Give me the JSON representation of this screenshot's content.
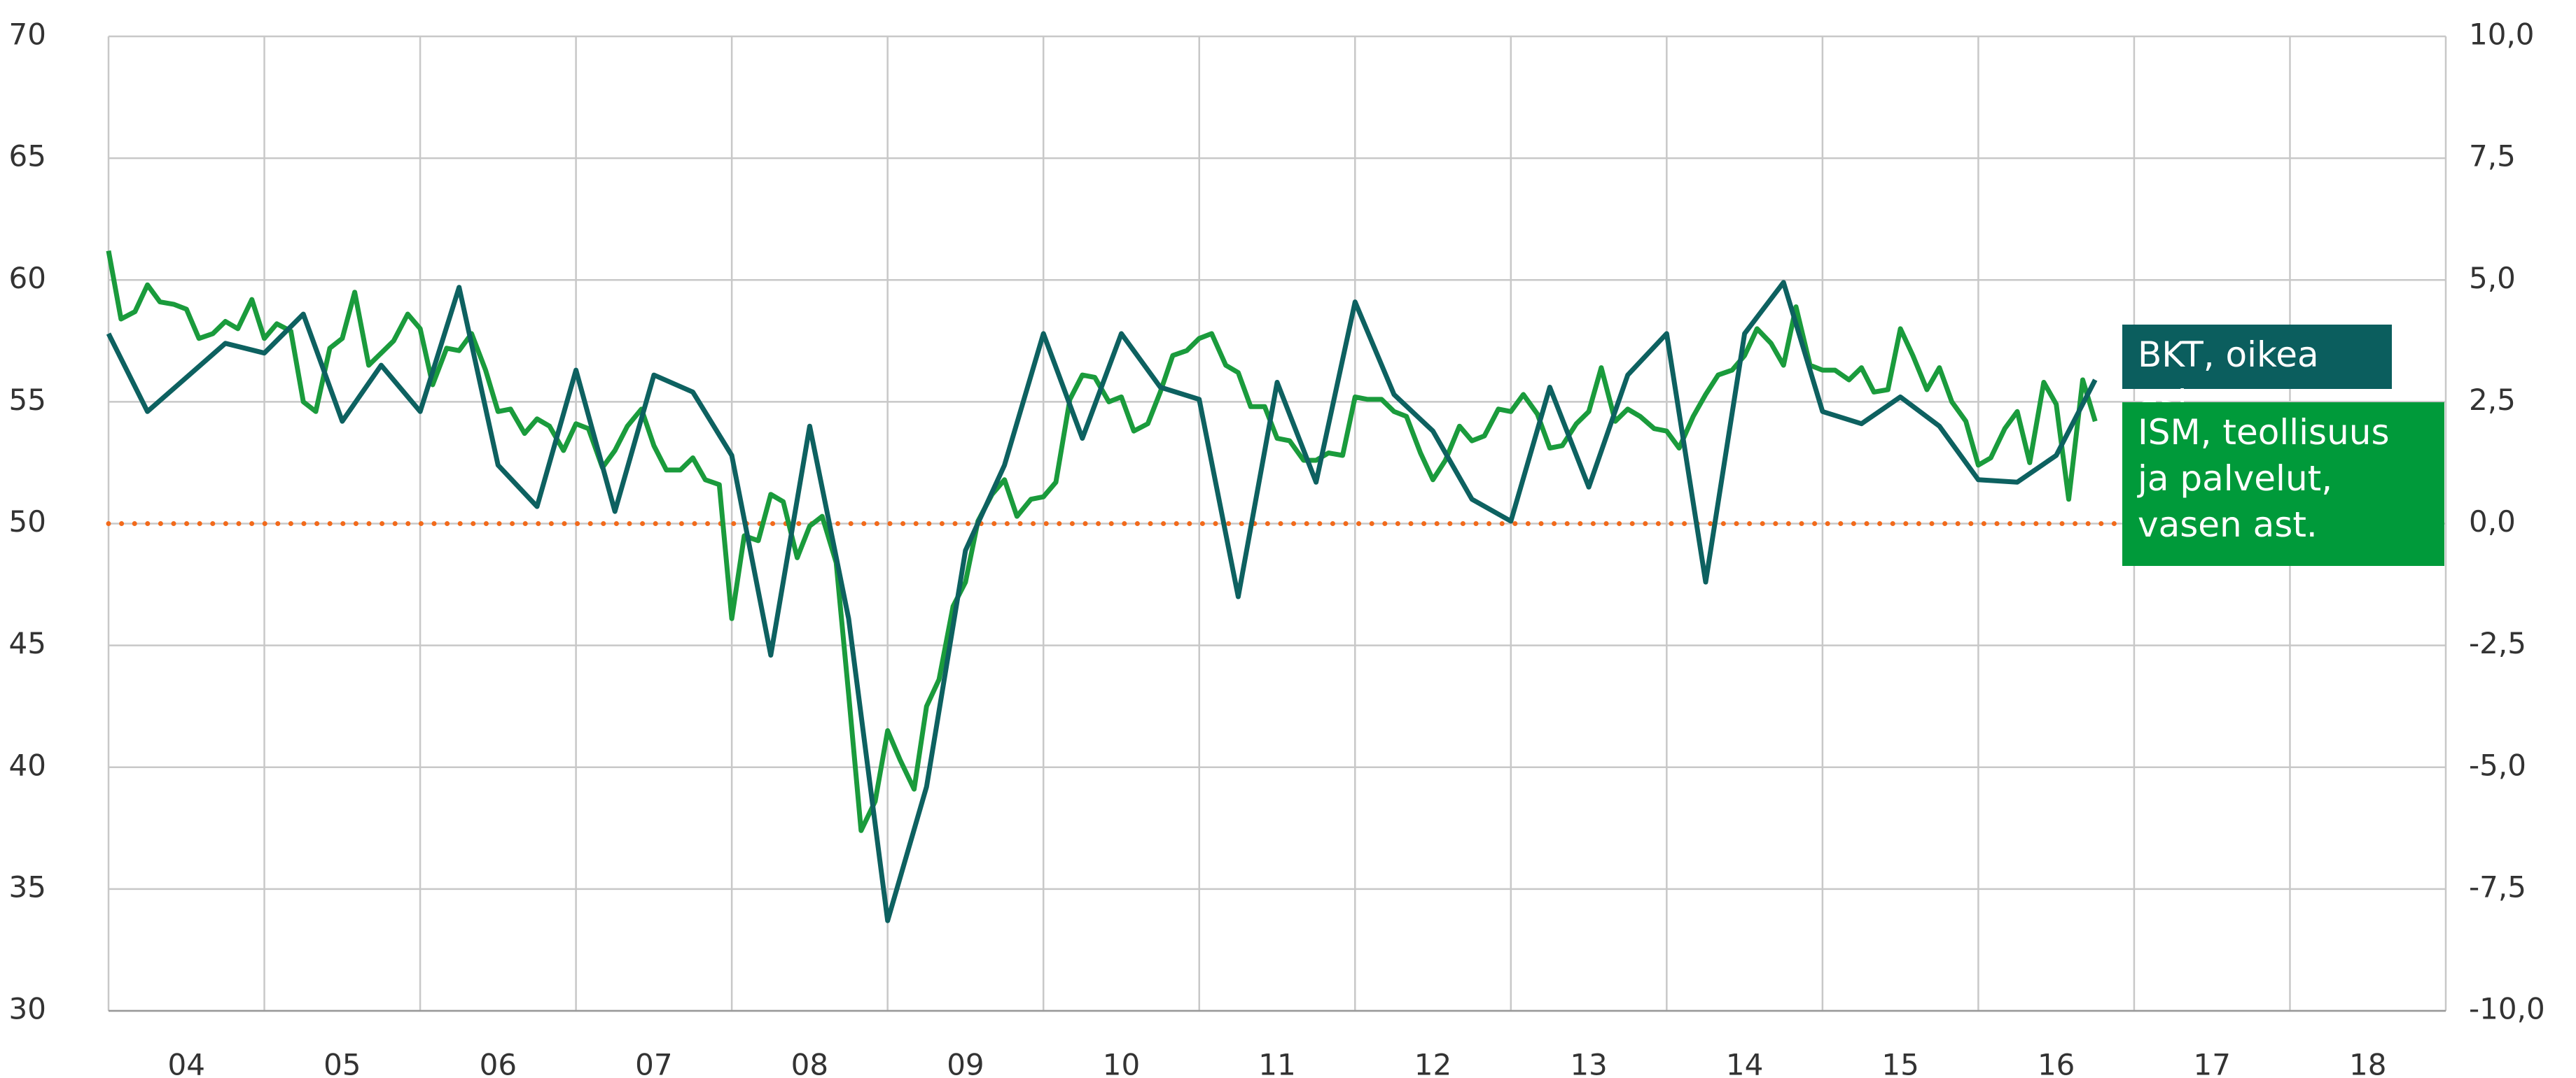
{
  "chart_data": {
    "type": "line",
    "xlim": [
      2004,
      2019
    ],
    "xticks": [
      {
        "value": 2004.5,
        "label": "04"
      },
      {
        "value": 2005.5,
        "label": "05"
      },
      {
        "value": 2006.5,
        "label": "06"
      },
      {
        "value": 2007.5,
        "label": "07"
      },
      {
        "value": 2008.5,
        "label": "08"
      },
      {
        "value": 2009.5,
        "label": "09"
      },
      {
        "value": 2010.5,
        "label": "10"
      },
      {
        "value": 2011.5,
        "label": "11"
      },
      {
        "value": 2012.5,
        "label": "12"
      },
      {
        "value": 2013.5,
        "label": "13"
      },
      {
        "value": 2014.5,
        "label": "14"
      },
      {
        "value": 2015.5,
        "label": "15"
      },
      {
        "value": 2016.5,
        "label": "16"
      },
      {
        "value": 2017.5,
        "label": "17"
      },
      {
        "value": 2018.5,
        "label": "18"
      }
    ],
    "ylim": [
      30,
      70
    ],
    "yticks": [
      30,
      35,
      40,
      45,
      50,
      55,
      60,
      65,
      70
    ],
    "y2lim": [
      -10,
      10
    ],
    "y2ticks": [
      {
        "value": -10,
        "label": "-10,0"
      },
      {
        "value": -7.5,
        "label": "-7,5"
      },
      {
        "value": -5,
        "label": "-5,0"
      },
      {
        "value": -2.5,
        "label": "-2,5"
      },
      {
        "value": 0,
        "label": "0,0"
      },
      {
        "value": 2.5,
        "label": "2,5"
      },
      {
        "value": 5,
        "label": "5,0"
      },
      {
        "value": 7.5,
        "label": "7,5"
      },
      {
        "value": 10,
        "label": "10,0"
      }
    ],
    "grid": true,
    "reference_line": {
      "axis": "y2",
      "value": 0,
      "color": "#f26a1b"
    },
    "series": [
      {
        "name": "BKT, oikea ast.",
        "color": "#0d6160",
        "axis": "y2",
        "x": [
          2004,
          2004.25,
          2004.5,
          2004.75,
          2005,
          2005.25,
          2005.5,
          2005.75,
          2006,
          2006.25,
          2006.5,
          2006.75,
          2007,
          2007.25,
          2007.5,
          2007.75,
          2008,
          2008.25,
          2008.5,
          2008.75,
          2009,
          2009.25,
          2009.5,
          2009.75,
          2010,
          2010.25,
          2010.5,
          2010.75,
          2011,
          2011.25,
          2011.5,
          2011.75,
          2012,
          2012.25,
          2012.5,
          2012.75,
          2013,
          2013.25,
          2013.5,
          2013.75,
          2014,
          2014.25,
          2014.5,
          2014.75,
          2015,
          2015.25,
          2015.5,
          2015.75,
          2016,
          2016.25,
          2016.5,
          2016.75
        ],
        "values": [
          3.9,
          2.3,
          3.0,
          3.7,
          3.5,
          4.3,
          2.1,
          3.25,
          2.3,
          4.85,
          1.2,
          0.35,
          3.15,
          0.25,
          3.05,
          2.7,
          1.4,
          -2.7,
          2.0,
          -1.95,
          -8.15,
          -5.4,
          -0.55,
          1.2,
          3.9,
          1.75,
          3.9,
          2.8,
          2.55,
          -1.5,
          2.9,
          0.85,
          4.55,
          2.65,
          1.9,
          0.5,
          0.05,
          2.8,
          0.75,
          3.05,
          3.9,
          -1.2,
          3.9,
          4.95,
          2.3,
          2.05,
          2.6,
          2.0,
          0.9,
          0.85,
          1.4,
          2.95
        ]
      },
      {
        "name": "ISM, teollisuus ja palvelut, vasen ast.",
        "color": "#1a9b3c",
        "x": [
          2004,
          2004.08,
          2004.17,
          2004.25,
          2004.33,
          2004.42,
          2004.5,
          2004.58,
          2004.67,
          2004.75,
          2004.83,
          2004.92,
          2005,
          2005.08,
          2005.17,
          2005.25,
          2005.33,
          2005.42,
          2005.5,
          2005.58,
          2005.67,
          2005.75,
          2005.83,
          2005.92,
          2006,
          2006.08,
          2006.17,
          2006.25,
          2006.33,
          2006.42,
          2006.5,
          2006.58,
          2006.67,
          2006.75,
          2006.83,
          2006.92,
          2007,
          2007.08,
          2007.17,
          2007.25,
          2007.33,
          2007.42,
          2007.5,
          2007.58,
          2007.67,
          2007.75,
          2007.83,
          2007.92,
          2008,
          2008.08,
          2008.17,
          2008.25,
          2008.33,
          2008.42,
          2008.5,
          2008.58,
          2008.67,
          2008.75,
          2008.83,
          2008.92,
          2009,
          2009.08,
          2009.17,
          2009.25,
          2009.33,
          2009.42,
          2009.5,
          2009.58,
          2009.67,
          2009.75,
          2009.83,
          2009.92,
          2010,
          2010.08,
          2010.17,
          2010.25,
          2010.33,
          2010.42,
          2010.5,
          2010.58,
          2010.67,
          2010.75,
          2010.83,
          2010.92,
          2011,
          2011.08,
          2011.17,
          2011.25,
          2011.33,
          2011.42,
          2011.5,
          2011.58,
          2011.67,
          2011.75,
          2011.83,
          2011.92,
          2012,
          2012.08,
          2012.17,
          2012.25,
          2012.33,
          2012.42,
          2012.5,
          2012.58,
          2012.67,
          2012.75,
          2012.83,
          2012.92,
          2013,
          2013.08,
          2013.17,
          2013.25,
          2013.33,
          2013.42,
          2013.5,
          2013.58,
          2013.67,
          2013.75,
          2013.83,
          2013.92,
          2014,
          2014.08,
          2014.17,
          2014.25,
          2014.33,
          2014.42,
          2014.5,
          2014.58,
          2014.67,
          2014.75,
          2014.83,
          2014.92,
          2015,
          2015.08,
          2015.17,
          2015.25,
          2015.33,
          2015.42,
          2015.5,
          2015.58,
          2015.67,
          2015.75,
          2015.83,
          2015.92,
          2016,
          2016.08,
          2016.17,
          2016.25,
          2016.33,
          2016.42,
          2016.5,
          2016.58,
          2016.67,
          2016.75
        ],
        "values": [
          61.2,
          58.4,
          58.7,
          59.8,
          59.1,
          59.0,
          58.8,
          57.6,
          57.8,
          58.3,
          58.0,
          59.2,
          57.6,
          58.2,
          57.9,
          55.0,
          54.6,
          57.2,
          57.6,
          59.5,
          56.5,
          57.0,
          57.5,
          58.6,
          58.0,
          55.7,
          57.2,
          57.1,
          57.8,
          56.3,
          54.6,
          54.7,
          53.7,
          54.3,
          54.0,
          53.0,
          54.1,
          53.9,
          52.3,
          53.0,
          54.0,
          54.7,
          53.2,
          52.2,
          52.2,
          52.7,
          51.8,
          51.6,
          46.1,
          49.5,
          49.3,
          51.2,
          50.9,
          48.6,
          49.9,
          50.3,
          48.4,
          43.0,
          37.4,
          38.6,
          41.5,
          40.3,
          39.1,
          42.5,
          43.6,
          46.6,
          47.6,
          50.1,
          51.2,
          51.8,
          50.3,
          51.0,
          51.1,
          51.7,
          55.1,
          56.1,
          56.0,
          55.0,
          55.2,
          53.8,
          54.1,
          55.4,
          56.9,
          57.1,
          57.6,
          57.8,
          56.5,
          56.2,
          54.8,
          54.8,
          53.5,
          53.4,
          52.6,
          52.6,
          52.9,
          52.8,
          55.2,
          55.1,
          55.1,
          54.6,
          54.4,
          52.9,
          51.8,
          52.6,
          54.0,
          53.4,
          53.6,
          54.7,
          54.6,
          55.3,
          54.5,
          53.1,
          53.2,
          54.1,
          54.6,
          56.4,
          54.2,
          54.7,
          54.4,
          53.9,
          53.8,
          53.1,
          54.4,
          55.3,
          56.1,
          56.3,
          56.9,
          58.0,
          57.4,
          56.5,
          58.9,
          56.5,
          56.3,
          56.3,
          55.9,
          56.4,
          55.4,
          55.5,
          58.0,
          56.9,
          55.5,
          56.4,
          55.0,
          54.2,
          52.4,
          52.7,
          53.9,
          54.6,
          52.5,
          55.8,
          54.9,
          51.0,
          55.9,
          54.2
        ]
      }
    ]
  }
}
